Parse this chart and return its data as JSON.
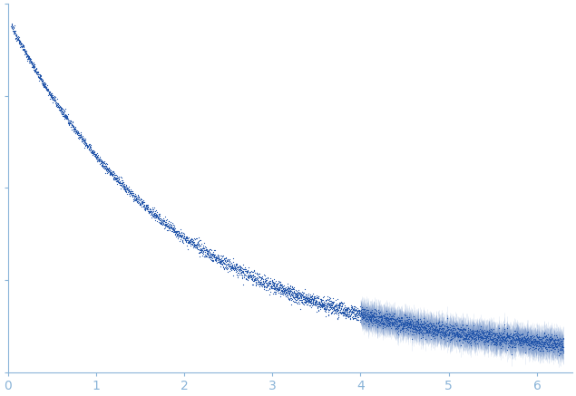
{
  "xlim": [
    0,
    6.4
  ],
  "xticks": [
    0,
    1,
    2,
    3,
    4,
    5,
    6
  ],
  "tick_color": "#8ab4d8",
  "axis_color": "#8ab4d8",
  "dot_color": "#2255aa",
  "dot_size": 0.8,
  "background_color": "#ffffff",
  "n_points_low": 300,
  "n_points_mid": 1500,
  "n_points_high": 3000,
  "q_min": 0.04,
  "q_max": 6.3,
  "I0": 1.0,
  "fig_width": 6.35,
  "fig_height": 4.37,
  "dpi": 100
}
